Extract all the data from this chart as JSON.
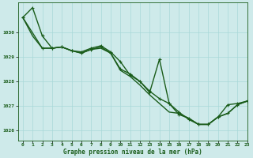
{
  "title": "Graphe pression niveau de la mer (hPa)",
  "bg_color": "#ceeaea",
  "grid_color": "#a8d8d8",
  "line_color": "#1a5c1a",
  "xlim": [
    -0.5,
    23
  ],
  "ylim": [
    1025.6,
    1031.2
  ],
  "yticks": [
    1026,
    1027,
    1028,
    1029,
    1030
  ],
  "xticks": [
    0,
    1,
    2,
    3,
    4,
    5,
    6,
    7,
    8,
    9,
    10,
    11,
    12,
    13,
    14,
    15,
    16,
    17,
    18,
    19,
    20,
    21,
    22,
    23
  ],
  "series": [
    {
      "x": [
        0,
        1,
        2,
        3,
        4,
        5,
        6,
        7,
        8,
        9,
        10,
        11,
        12,
        13,
        14,
        15,
        16,
        17,
        18,
        19,
        20,
        21,
        22,
        23
      ],
      "y": [
        1030.6,
        1031.0,
        1029.85,
        1029.35,
        1029.4,
        1029.25,
        1029.2,
        1029.35,
        1029.45,
        1029.2,
        1028.8,
        1028.25,
        1028.0,
        1027.6,
        1027.3,
        1027.1,
        1026.65,
        1026.5,
        1026.25,
        1026.25,
        1026.55,
        1027.05,
        1027.1,
        1027.2
      ],
      "marker": true,
      "lw": 1.0
    },
    {
      "x": [
        0,
        2,
        3,
        4,
        5,
        6,
        7,
        8,
        9,
        10,
        11,
        12,
        13,
        14,
        15,
        16,
        17,
        18,
        19,
        20,
        21,
        22,
        23
      ],
      "y": [
        1030.6,
        1029.35,
        1029.35,
        1029.4,
        1029.25,
        1029.15,
        1029.3,
        1029.4,
        1029.15,
        1028.5,
        1028.3,
        1028.0,
        1027.55,
        1028.9,
        1027.1,
        1026.75,
        1026.45,
        1026.25,
        1026.25,
        1026.55,
        1026.7,
        1027.05,
        1027.2
      ],
      "marker": true,
      "lw": 1.0
    },
    {
      "x": [
        0,
        1,
        2,
        3,
        4,
        5,
        6,
        7,
        8,
        9,
        10,
        11,
        12,
        13,
        14,
        15,
        16,
        17,
        18,
        19,
        20,
        21,
        22,
        23
      ],
      "y": [
        1030.6,
        1029.85,
        1029.35,
        1029.35,
        1029.4,
        1029.25,
        1029.15,
        1029.3,
        1029.35,
        1029.15,
        1028.45,
        1028.2,
        1027.85,
        1027.45,
        1027.1,
        1026.75,
        1026.7,
        1026.5,
        1026.25,
        1026.25,
        1026.55,
        1026.7,
        1027.05,
        1027.2
      ],
      "marker": false,
      "lw": 1.0
    }
  ]
}
